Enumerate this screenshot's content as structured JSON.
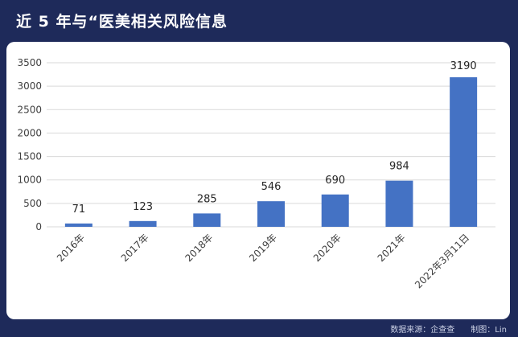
{
  "header": {
    "title": "近 5 年与“医美相关风险信息"
  },
  "footer": {
    "source": "数据来源：企查查　　制图：Lin"
  },
  "colors": {
    "background": "#1e2a5a",
    "bar": "#4472c4",
    "grid": "#d9d9d9",
    "panel": "#ffffff"
  },
  "chart_data": {
    "type": "bar",
    "title": "近 5 年与“医美相关风险信息",
    "categories": [
      "2016年",
      "2017年",
      "2018年",
      "2019年",
      "2020年",
      "2021年",
      "2022年3月11日"
    ],
    "values": [
      71,
      123,
      285,
      546,
      690,
      984,
      3190
    ],
    "data_labels": [
      "71",
      "123",
      "285",
      "546",
      "690",
      "984",
      "3190"
    ],
    "yticks": [
      0,
      500,
      1000,
      1500,
      2000,
      2500,
      3000,
      3500
    ],
    "ylim": [
      0,
      3500
    ],
    "xlabel": "",
    "ylabel": "",
    "grid": true,
    "legend": "none"
  }
}
